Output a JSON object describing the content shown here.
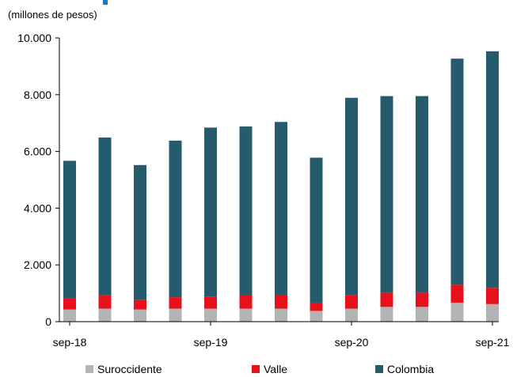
{
  "chart_data": {
    "type": "bar",
    "stacked": true,
    "unit_label": "(millones  de pesos)",
    "ylim": [
      0,
      10000
    ],
    "yticks": [
      "0",
      "2.000",
      "4.000",
      "6.000",
      "8.000",
      "10.000"
    ],
    "xtick_labels": [
      {
        "index": 0,
        "label": "sep-18"
      },
      {
        "index": 4,
        "label": "sep-19"
      },
      {
        "index": 8,
        "label": "sep-20"
      },
      {
        "index": 12,
        "label": "sep-21"
      }
    ],
    "bar_count": 13,
    "series": [
      {
        "name": "Suroccidente",
        "color": "#b3b3b3",
        "values": [
          430,
          460,
          430,
          460,
          460,
          460,
          460,
          380,
          460,
          520,
          520,
          670,
          620
        ]
      },
      {
        "name": "Valle",
        "color": "#e8101a",
        "values": [
          380,
          470,
          340,
          400,
          410,
          460,
          460,
          290,
          470,
          500,
          500,
          630,
          570
        ]
      },
      {
        "name": "Colombia",
        "color": "#265b6e",
        "values": [
          4860,
          5560,
          4750,
          5520,
          5970,
          5960,
          6120,
          5110,
          6960,
          6930,
          6930,
          7970,
          8340
        ]
      }
    ],
    "legend_position": "bottom",
    "grid": false
  }
}
